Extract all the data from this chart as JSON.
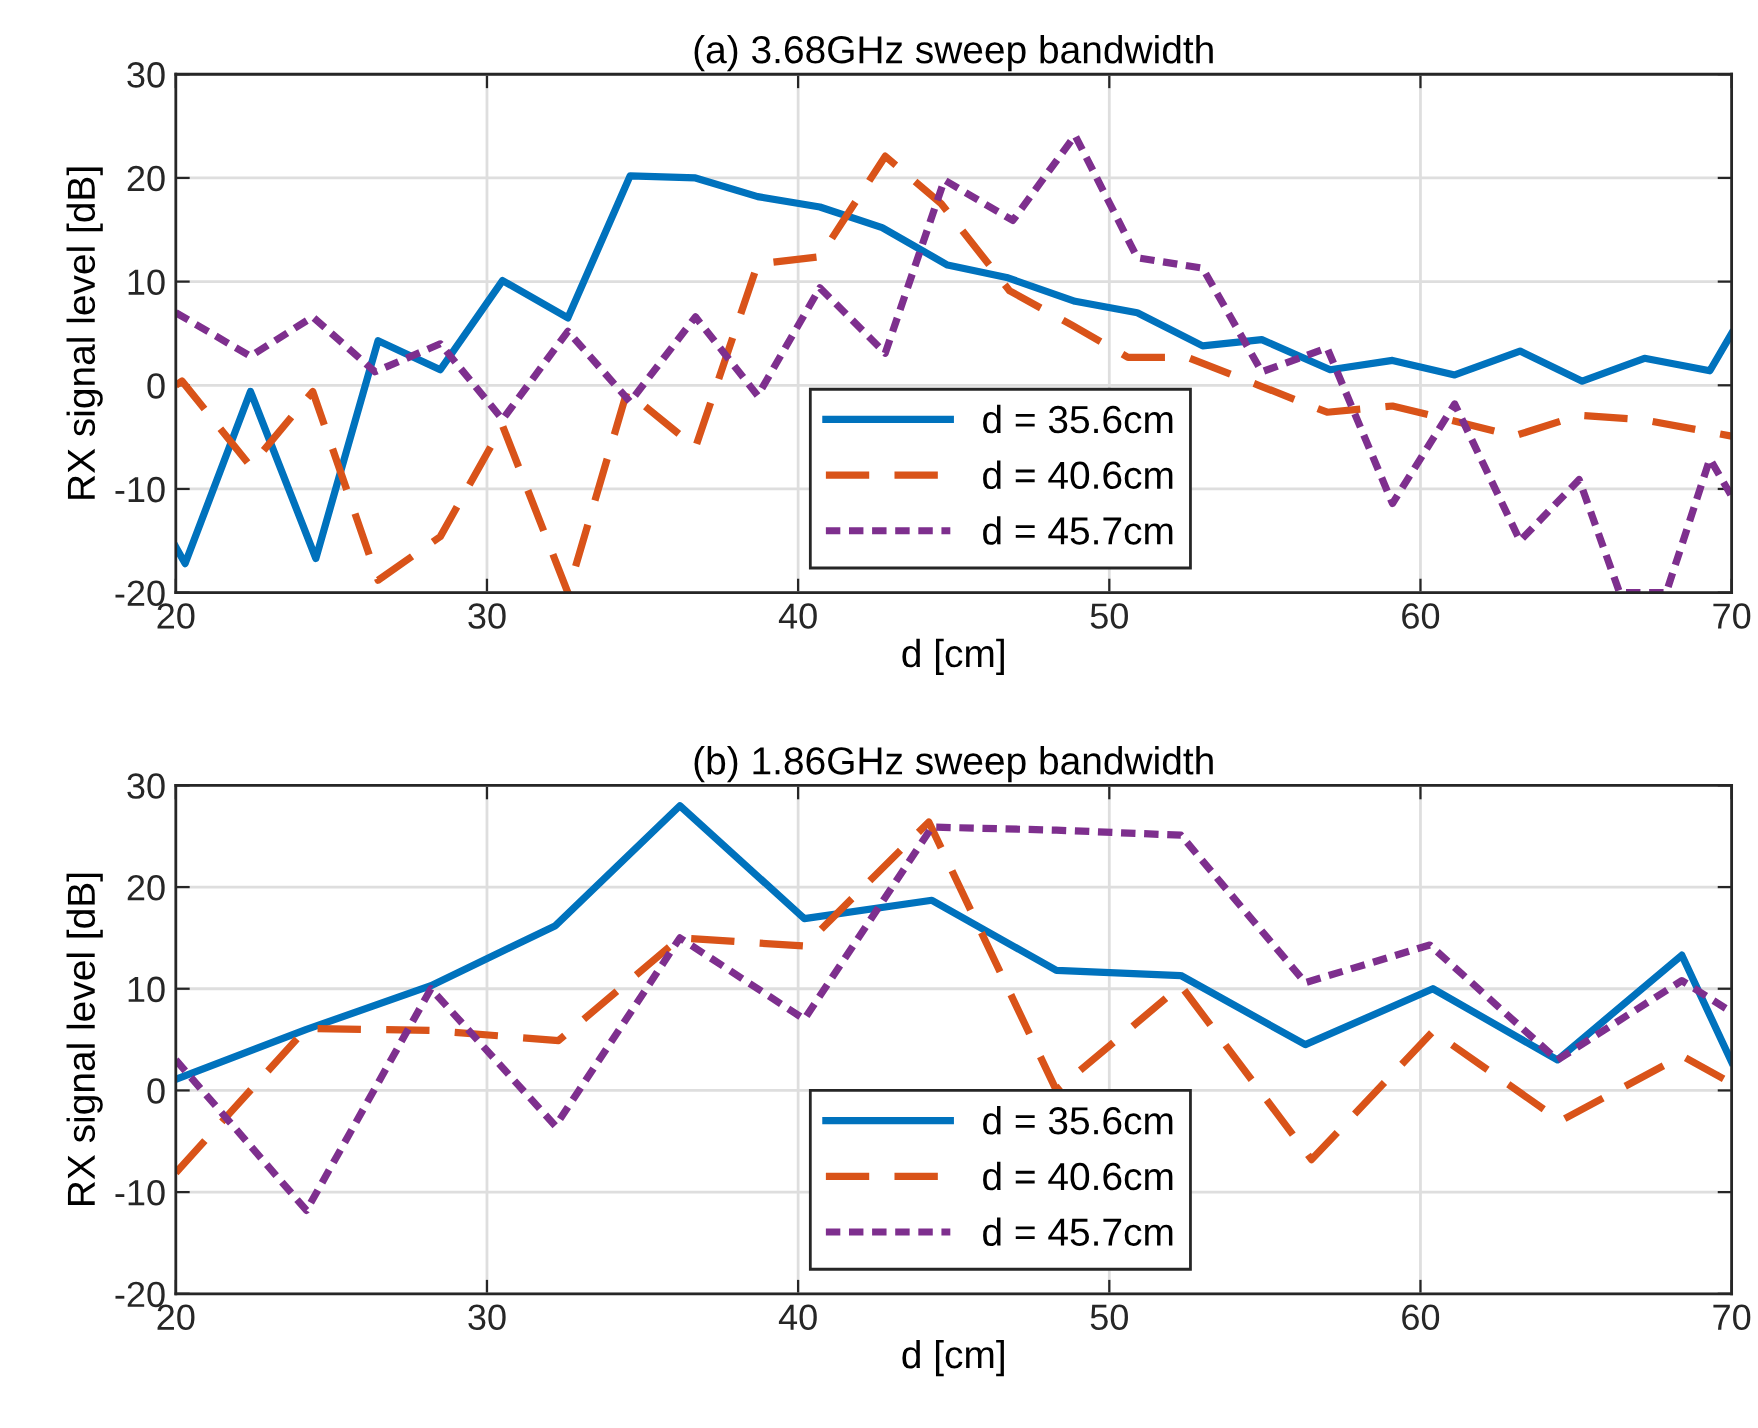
{
  "chart_data": [
    {
      "type": "line",
      "title": "(a) 3.68GHz sweep bandwidth",
      "xlabel": "d [cm]",
      "ylabel": "RX signal level [dB]",
      "xlim": [
        20,
        70
      ],
      "ylim": [
        -20,
        30
      ],
      "xticks": [
        20,
        30,
        40,
        50,
        60,
        70
      ],
      "yticks": [
        -20,
        -10,
        0,
        10,
        20,
        30
      ],
      "grid": true,
      "legend": "bottom",
      "series": [
        {
          "name": "d = 35.6cm",
          "color": "#0072bd",
          "line_style": "solid",
          "x": [
            20,
            20.3,
            22.4,
            24.5,
            26.5,
            28.5,
            30.5,
            32.6,
            34.6,
            36.7,
            38.7,
            40.7,
            42.7,
            44.8,
            46.7,
            48.9,
            50.9,
            53.0,
            54.9,
            57.1,
            59.1,
            61.1,
            63.2,
            65.2,
            67.2,
            69.3,
            70
          ],
          "values": [
            -15.6,
            -17.2,
            -0.6,
            -16.7,
            4.3,
            1.5,
            10.1,
            6.5,
            20.2,
            20.0,
            18.2,
            17.2,
            15.2,
            11.6,
            10.4,
            8.1,
            7.0,
            3.8,
            4.4,
            1.5,
            2.4,
            1.0,
            3.3,
            0.4,
            2.6,
            1.4,
            5.0
          ]
        },
        {
          "name": "d = 40.6cm",
          "color": "#d95319",
          "line_style": "dashed",
          "x": [
            20,
            20.2,
            22.4,
            24.4,
            26.5,
            28.5,
            30.5,
            32.6,
            34.5,
            36.7,
            38.7,
            40.7,
            42.8,
            44.6,
            46.8,
            48.8,
            50.6,
            52.5,
            54.8,
            57.0,
            59.1,
            60.9,
            63.0,
            65.1,
            67.1,
            70
          ],
          "values": [
            0,
            0.4,
            -7.8,
            -0.6,
            -18.8,
            -14.6,
            -3.9,
            -20,
            -0.6,
            -6.0,
            11.7,
            12.4,
            22.1,
            17.5,
            9.1,
            5.8,
            2.7,
            2.7,
            0,
            -2.6,
            -2.0,
            -3.3,
            -4.9,
            -2.9,
            -3.3,
            -4.9
          ]
        },
        {
          "name": "d = 45.7cm",
          "color": "#7e2f8e",
          "line_style": "dotted",
          "x": [
            20,
            22.4,
            24.4,
            26.4,
            28.5,
            30.5,
            32.6,
            34.6,
            36.7,
            38.7,
            40.7,
            42.8,
            44.7,
            46.9,
            48.9,
            50.9,
            53.0,
            54.9,
            57.0,
            59.1,
            61.1,
            63.2,
            65.1,
            66.4,
            67.9,
            69.3,
            70
          ],
          "values": [
            7.0,
            2.8,
            6.6,
            1.3,
            4.0,
            -3.3,
            5.2,
            -1.6,
            6.6,
            -1.0,
            9.4,
            3.1,
            19.8,
            15.9,
            24.1,
            12.3,
            11.3,
            1.3,
            3.6,
            -11.4,
            -1.8,
            -15.0,
            -9.1,
            -20,
            -20,
            -7.1,
            -10.7
          ]
        }
      ]
    },
    {
      "type": "line",
      "title": "(b) 1.86GHz sweep bandwidth",
      "xlabel": "d [cm]",
      "ylabel": "RX signal level [dB]",
      "xlim": [
        20,
        70
      ],
      "ylim": [
        -20,
        30
      ],
      "xticks": [
        20,
        30,
        40,
        50,
        60,
        70
      ],
      "yticks": [
        -20,
        -10,
        0,
        10,
        20,
        30
      ],
      "grid": true,
      "legend": "bottom",
      "series": [
        {
          "name": "d = 35.6cm",
          "color": "#0072bd",
          "line_style": "solid",
          "x": [
            20,
            24.2,
            28.2,
            32.2,
            36.2,
            40.2,
            44.3,
            48.3,
            52.3,
            56.3,
            60.4,
            64.4,
            68.4,
            70
          ],
          "values": [
            1.1,
            6.0,
            10.3,
            16.2,
            28.0,
            16.9,
            18.7,
            11.8,
            11.3,
            4.5,
            10.0,
            3.0,
            13.3,
            2.8
          ]
        },
        {
          "name": "d = 40.6cm",
          "color": "#d95319",
          "line_style": "dashed",
          "x": [
            20,
            24.2,
            28.2,
            32.3,
            36.2,
            40.2,
            44.2,
            48.3,
            52.3,
            56.5,
            60.4,
            64.5,
            68.4,
            70
          ],
          "values": [
            -8.1,
            6.1,
            5.9,
            4.9,
            15.0,
            14.2,
            26.4,
            0.0,
            10.3,
            -6.8,
            5.8,
            -3.0,
            3.4,
            0.7
          ]
        },
        {
          "name": "d = 45.7cm",
          "color": "#7e2f8e",
          "line_style": "dotted",
          "x": [
            20,
            24.2,
            28.2,
            32.2,
            36.2,
            40.2,
            44.3,
            48.3,
            52.3,
            56.3,
            60.3,
            64.4,
            68.4,
            70
          ],
          "values": [
            3.0,
            -11.8,
            10.0,
            -3.5,
            15.0,
            7.0,
            25.9,
            25.6,
            25.1,
            10.6,
            14.3,
            3.0,
            10.8,
            7.7
          ]
        }
      ]
    }
  ]
}
